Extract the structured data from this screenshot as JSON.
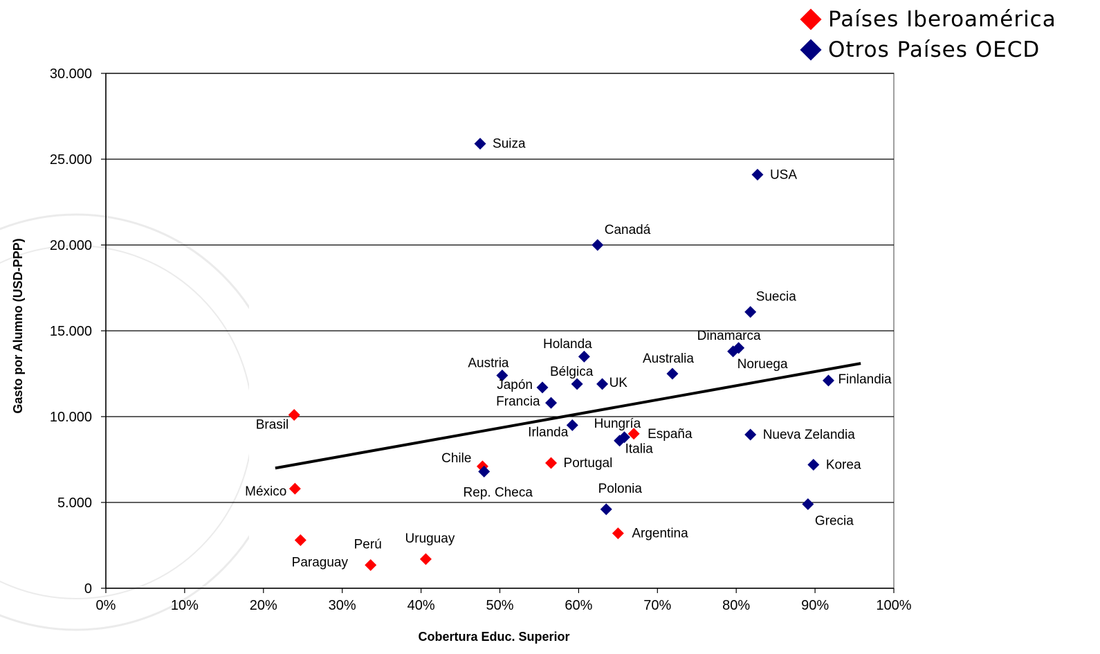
{
  "chart_data": {
    "type": "scatter",
    "xlabel": "Cobertura Educ. Superior",
    "ylabel": "Gasto por Alumno (USD-PPP)",
    "xlim": [
      0,
      100
    ],
    "ylim": [
      0,
      30000
    ],
    "x_ticks": [
      {
        "value": 0,
        "label": "0%"
      },
      {
        "value": 10,
        "label": "10%"
      },
      {
        "value": 20,
        "label": "20%"
      },
      {
        "value": 30,
        "label": "30%"
      },
      {
        "value": 40,
        "label": "40%"
      },
      {
        "value": 50,
        "label": "50%"
      },
      {
        "value": 60,
        "label": "60%"
      },
      {
        "value": 70,
        "label": "70%"
      },
      {
        "value": 80,
        "label": "80%"
      },
      {
        "value": 90,
        "label": "90%"
      },
      {
        "value": 100,
        "label": "100%"
      }
    ],
    "y_ticks": [
      {
        "value": 0,
        "label": "0"
      },
      {
        "value": 5000,
        "label": "5.000"
      },
      {
        "value": 10000,
        "label": "10.000"
      },
      {
        "value": 15000,
        "label": "15.000"
      },
      {
        "value": 20000,
        "label": "20.000"
      },
      {
        "value": 25000,
        "label": "25.000"
      },
      {
        "value": 30000,
        "label": "30.000"
      }
    ],
    "grid": "horizontal",
    "legend_position": "top-right",
    "series": [
      {
        "name": "Países Iberoamérica",
        "color": "#ff0000",
        "points": [
          {
            "label": "Brasil",
            "x": 23.9,
            "y": 10100
          },
          {
            "label": "México",
            "x": 24.0,
            "y": 5800
          },
          {
            "label": "Paraguay",
            "x": 24.7,
            "y": 2800
          },
          {
            "label": "Perú",
            "x": 33.6,
            "y": 1350
          },
          {
            "label": "Uruguay",
            "x": 40.6,
            "y": 1700
          },
          {
            "label": "Chile",
            "x": 47.8,
            "y": 7100
          },
          {
            "label": "Portugal",
            "x": 56.5,
            "y": 7300
          },
          {
            "label": "España",
            "x": 67.0,
            "y": 9000
          },
          {
            "label": "Argentina",
            "x": 65.0,
            "y": 3200
          }
        ]
      },
      {
        "name": "Otros Países OECD",
        "color": "#000080",
        "points": [
          {
            "label": "Suiza",
            "x": 47.5,
            "y": 25900
          },
          {
            "label": "USA",
            "x": 82.7,
            "y": 24100
          },
          {
            "label": "Canadá",
            "x": 62.4,
            "y": 20000
          },
          {
            "label": "Suecia",
            "x": 81.8,
            "y": 16100
          },
          {
            "label": "Dinamarca",
            "x": 80.3,
            "y": 14000
          },
          {
            "label": "Noruega",
            "x": 79.6,
            "y": 13800
          },
          {
            "label": "Holanda",
            "x": 60.7,
            "y": 13500
          },
          {
            "label": "Australia",
            "x": 71.9,
            "y": 12500
          },
          {
            "label": "Austria",
            "x": 50.3,
            "y": 12400
          },
          {
            "label": "Bélgica",
            "x": 59.8,
            "y": 11900
          },
          {
            "label": "UK",
            "x": 63.0,
            "y": 11900
          },
          {
            "label": "Japón",
            "x": 55.4,
            "y": 11700
          },
          {
            "label": "Finlandia",
            "x": 91.7,
            "y": 12100
          },
          {
            "label": "Francia",
            "x": 56.5,
            "y": 10800
          },
          {
            "label": "Irlanda",
            "x": 59.2,
            "y": 9500
          },
          {
            "label": "Hungría",
            "x": 65.8,
            "y": 8800
          },
          {
            "label": "Italia",
            "x": 65.2,
            "y": 8600
          },
          {
            "label": "Nueva Zelandia",
            "x": 81.8,
            "y": 8950
          },
          {
            "label": "Rep. Checa",
            "x": 48.0,
            "y": 6800
          },
          {
            "label": "Korea",
            "x": 89.8,
            "y": 7200
          },
          {
            "label": "Polonia",
            "x": 63.5,
            "y": 4600
          },
          {
            "label": "Grecia",
            "x": 89.1,
            "y": 4900
          }
        ]
      }
    ],
    "trendline": {
      "x": [
        21.5,
        95.8
      ],
      "y": [
        7000,
        13100
      ],
      "color": "#000000"
    }
  }
}
